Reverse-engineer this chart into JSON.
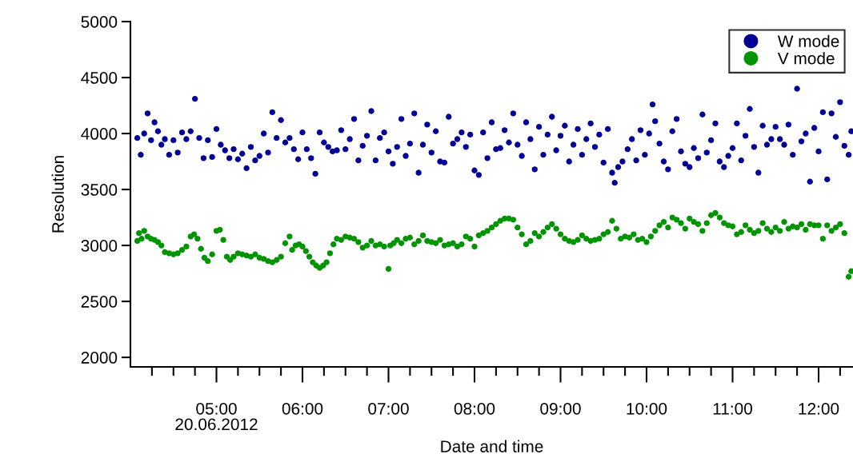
{
  "chart_data": {
    "type": "scatter",
    "xlabel": "Date and time",
    "ylabel": "Resolution",
    "xlim": [
      4.0,
      12.4
    ],
    "ylim": [
      1915,
      5000
    ],
    "yticks": [
      2000,
      2500,
      3000,
      3500,
      4000,
      4500,
      5000
    ],
    "xticks": [
      {
        "value": 4.25,
        "label": null
      },
      {
        "value": 4.5,
        "label": null
      },
      {
        "value": 4.75,
        "label": null
      },
      {
        "value": 5,
        "label": "05:00\n20.06.2012"
      },
      {
        "value": 5.25,
        "label": null
      },
      {
        "value": 5.5,
        "label": null
      },
      {
        "value": 5.75,
        "label": null
      },
      {
        "value": 6,
        "label": "06:00"
      },
      {
        "value": 6.25,
        "label": null
      },
      {
        "value": 6.5,
        "label": null
      },
      {
        "value": 6.75,
        "label": null
      },
      {
        "value": 7,
        "label": "07:00"
      },
      {
        "value": 7.25,
        "label": null
      },
      {
        "value": 7.5,
        "label": null
      },
      {
        "value": 7.75,
        "label": null
      },
      {
        "value": 8,
        "label": "08:00"
      },
      {
        "value": 8.25,
        "label": null
      },
      {
        "value": 8.5,
        "label": null
      },
      {
        "value": 8.75,
        "label": null
      },
      {
        "value": 9,
        "label": "09:00"
      },
      {
        "value": 9.25,
        "label": null
      },
      {
        "value": 9.5,
        "label": null
      },
      {
        "value": 9.75,
        "label": null
      },
      {
        "value": 10,
        "label": "10:00"
      },
      {
        "value": 10.25,
        "label": null
      },
      {
        "value": 10.5,
        "label": null
      },
      {
        "value": 10.75,
        "label": null
      },
      {
        "value": 11,
        "label": "11:00"
      },
      {
        "value": 11.25,
        "label": null
      },
      {
        "value": 11.5,
        "label": null
      },
      {
        "value": 11.75,
        "label": null
      },
      {
        "value": 12,
        "label": "12:00"
      },
      {
        "value": 12.25,
        "label": null
      }
    ],
    "grid": false,
    "legend": "top right",
    "marker": "circle",
    "series": [
      {
        "name": "W mode",
        "color": "#000096",
        "x": [
          4.08,
          4.12,
          4.16,
          4.2,
          4.24,
          4.28,
          4.32,
          4.36,
          4.4,
          4.45,
          4.5,
          4.55,
          4.6,
          4.65,
          4.7,
          4.75,
          4.8,
          4.85,
          4.9,
          4.95,
          5.0,
          5.05,
          5.1,
          5.15,
          5.2,
          5.25,
          5.3,
          5.35,
          5.4,
          5.45,
          5.5,
          5.55,
          5.6,
          5.65,
          5.7,
          5.75,
          5.8,
          5.85,
          5.9,
          5.95,
          6.0,
          6.05,
          6.1,
          6.15,
          6.2,
          6.25,
          6.3,
          6.35,
          6.4,
          6.45,
          6.5,
          6.55,
          6.6,
          6.65,
          6.7,
          6.75,
          6.8,
          6.85,
          6.9,
          6.95,
          7.0,
          7.05,
          7.1,
          7.15,
          7.2,
          7.25,
          7.3,
          7.35,
          7.4,
          7.45,
          7.5,
          7.55,
          7.6,
          7.65,
          7.7,
          7.75,
          7.8,
          7.85,
          7.9,
          7.95,
          8.0,
          8.05,
          8.1,
          8.15,
          8.2,
          8.25,
          8.3,
          8.35,
          8.4,
          8.45,
          8.5,
          8.55,
          8.6,
          8.65,
          8.7,
          8.75,
          8.8,
          8.85,
          8.9,
          8.95,
          9.0,
          9.05,
          9.1,
          9.15,
          9.2,
          9.25,
          9.3,
          9.35,
          9.4,
          9.45,
          9.5,
          9.55,
          9.6,
          9.63,
          9.67,
          9.72,
          9.78,
          9.83,
          9.88,
          9.93,
          9.98,
          10.03,
          10.07,
          10.1,
          10.15,
          10.2,
          10.25,
          10.3,
          10.35,
          10.4,
          10.45,
          10.5,
          10.55,
          10.6,
          10.65,
          10.7,
          10.75,
          10.8,
          10.85,
          10.9,
          10.95,
          11.0,
          11.05,
          11.1,
          11.15,
          11.2,
          11.25,
          11.3,
          11.35,
          11.4,
          11.45,
          11.5,
          11.55,
          11.6,
          11.65,
          11.7,
          11.75,
          11.8,
          11.85,
          11.9,
          11.95,
          12.0,
          12.05,
          12.1,
          12.15,
          12.2,
          12.25,
          12.3,
          12.35,
          12.38
        ],
        "values": [
          3960,
          3810,
          4000,
          4180,
          3940,
          4100,
          4020,
          3900,
          3950,
          3810,
          3940,
          3830,
          4010,
          3950,
          4020,
          4310,
          3960,
          3780,
          3940,
          3790,
          4040,
          3900,
          3850,
          3780,
          3860,
          3770,
          3820,
          3690,
          3880,
          3760,
          3800,
          4000,
          3830,
          4190,
          3960,
          4120,
          3920,
          3960,
          3860,
          3770,
          4010,
          3860,
          3780,
          3640,
          4010,
          3920,
          3880,
          3840,
          3850,
          4030,
          3860,
          3950,
          4130,
          3760,
          3890,
          3980,
          4200,
          3760,
          3960,
          4010,
          3840,
          3730,
          3880,
          4130,
          3800,
          3910,
          4180,
          3650,
          3900,
          4080,
          3830,
          4020,
          3750,
          3740,
          4150,
          3910,
          3950,
          4010,
          3880,
          3990,
          3670,
          3630,
          4010,
          3780,
          4100,
          3860,
          3870,
          4030,
          3920,
          4180,
          3900,
          3800,
          4100,
          3950,
          3680,
          4060,
          3810,
          3990,
          4150,
          3850,
          3980,
          4070,
          3750,
          3900,
          4040,
          3810,
          3950,
          4090,
          3880,
          3990,
          3740,
          4040,
          3650,
          3560,
          3700,
          3750,
          3860,
          3950,
          3760,
          4030,
          3810,
          4000,
          4260,
          4110,
          3910,
          3750,
          3680,
          4020,
          4130,
          3840,
          3730,
          3700,
          3870,
          3780,
          4170,
          3830,
          3940,
          4090,
          3750,
          3700,
          3800,
          3870,
          4090,
          3760,
          3980,
          4220,
          3880,
          3650,
          4070,
          3900,
          3950,
          4060,
          3950,
          3900,
          4080,
          3810,
          4400,
          3930,
          4000,
          3570,
          4050,
          3840,
          4190,
          3590,
          4180,
          3970,
          4280,
          3890,
          3810,
          4020
        ]
      },
      {
        "name": "V mode",
        "color": "#009400",
        "x": [
          4.08,
          4.1,
          4.13,
          4.16,
          4.2,
          4.24,
          4.28,
          4.32,
          4.36,
          4.4,
          4.45,
          4.5,
          4.55,
          4.6,
          4.65,
          4.7,
          4.74,
          4.78,
          4.82,
          4.86,
          4.9,
          4.95,
          5.0,
          5.04,
          5.08,
          5.12,
          5.16,
          5.2,
          5.25,
          5.3,
          5.35,
          5.4,
          5.45,
          5.5,
          5.55,
          5.6,
          5.65,
          5.7,
          5.75,
          5.8,
          5.85,
          5.88,
          5.92,
          5.96,
          6.0,
          6.04,
          6.08,
          6.12,
          6.16,
          6.2,
          6.24,
          6.28,
          6.32,
          6.36,
          6.4,
          6.45,
          6.5,
          6.55,
          6.6,
          6.65,
          6.7,
          6.75,
          6.8,
          6.85,
          6.9,
          6.95,
          7.0,
          7.02,
          7.06,
          7.1,
          7.15,
          7.2,
          7.25,
          7.3,
          7.35,
          7.4,
          7.45,
          7.5,
          7.55,
          7.6,
          7.65,
          7.7,
          7.75,
          7.8,
          7.85,
          7.9,
          7.95,
          8.0,
          8.05,
          8.1,
          8.15,
          8.2,
          8.25,
          8.3,
          8.35,
          8.4,
          8.45,
          8.5,
          8.55,
          8.6,
          8.65,
          8.7,
          8.75,
          8.8,
          8.85,
          8.9,
          8.95,
          9.0,
          9.05,
          9.1,
          9.15,
          9.2,
          9.25,
          9.3,
          9.35,
          9.4,
          9.45,
          9.5,
          9.55,
          9.6,
          9.65,
          9.7,
          9.75,
          9.8,
          9.85,
          9.9,
          9.95,
          10.0,
          10.05,
          10.1,
          10.15,
          10.2,
          10.25,
          10.3,
          10.35,
          10.4,
          10.45,
          10.5,
          10.55,
          10.6,
          10.65,
          10.7,
          10.75,
          10.8,
          10.85,
          10.9,
          10.95,
          11.0,
          11.05,
          11.1,
          11.15,
          11.2,
          11.25,
          11.3,
          11.35,
          11.4,
          11.45,
          11.5,
          11.55,
          11.6,
          11.65,
          11.7,
          11.75,
          11.8,
          11.85,
          11.9,
          11.95,
          12.0,
          12.05,
          12.1,
          12.15,
          12.2,
          12.25,
          12.3,
          12.35,
          12.38
        ],
        "values": [
          3040,
          3110,
          3060,
          3130,
          3080,
          3060,
          3050,
          3030,
          3000,
          2940,
          2930,
          2920,
          2930,
          2960,
          2990,
          3080,
          3100,
          3060,
          2970,
          2890,
          2860,
          2920,
          3130,
          3140,
          3050,
          2900,
          2870,
          2900,
          2930,
          2920,
          2910,
          2900,
          2920,
          2890,
          2880,
          2860,
          2850,
          2870,
          2900,
          3020,
          3080,
          2960,
          3000,
          3010,
          2990,
          2950,
          2900,
          2850,
          2820,
          2800,
          2820,
          2850,
          2930,
          3010,
          3060,
          3050,
          3080,
          3070,
          3060,
          3030,
          2980,
          3000,
          3040,
          3000,
          3010,
          2990,
          2790,
          3000,
          3020,
          3050,
          3020,
          3060,
          3070,
          3010,
          3040,
          3090,
          3040,
          3030,
          3020,
          3050,
          3000,
          3010,
          3020,
          2990,
          3010,
          3080,
          3060,
          2990,
          3090,
          3110,
          3130,
          3160,
          3190,
          3220,
          3240,
          3240,
          3230,
          3160,
          3100,
          3010,
          3040,
          3110,
          3080,
          3120,
          3160,
          3190,
          3150,
          3100,
          3060,
          3040,
          3030,
          3050,
          3090,
          3060,
          3040,
          3050,
          3060,
          3100,
          3120,
          3220,
          3150,
          3060,
          3080,
          3070,
          3100,
          3050,
          3060,
          3030,
          3080,
          3130,
          3180,
          3210,
          3160,
          3250,
          3230,
          3200,
          3150,
          3240,
          3210,
          3190,
          3130,
          3200,
          3270,
          3290,
          3250,
          3200,
          3180,
          3170,
          3100,
          3120,
          3180,
          3140,
          3110,
          3130,
          3200,
          3150,
          3120,
          3160,
          3130,
          3210,
          3150,
          3170,
          3160,
          3190,
          3140,
          3190,
          3180,
          3180,
          3060,
          3180,
          3130,
          3160,
          3190,
          3110,
          2720,
          2770
        ]
      }
    ]
  }
}
